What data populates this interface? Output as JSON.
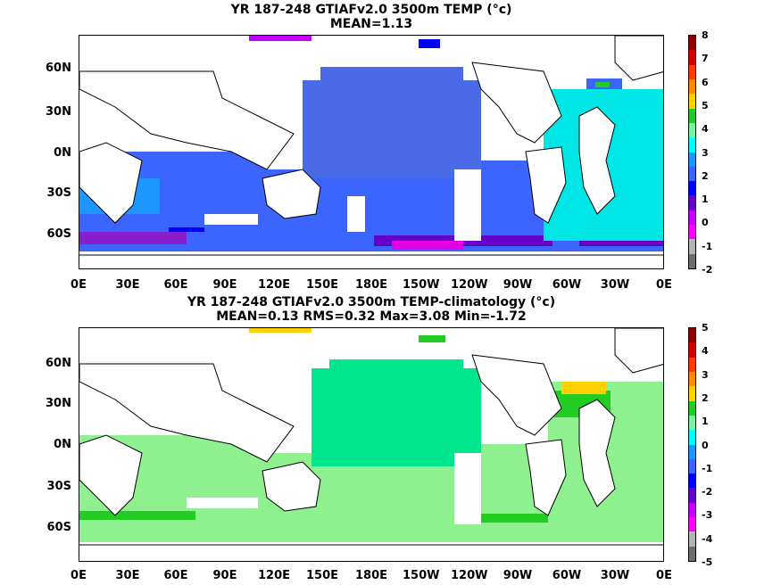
{
  "panels": [
    {
      "title_line1": "YR 187-248 GTIAFv2.0 3500m TEMP (°c)",
      "title_line2": "MEAN=1.13",
      "colorbar_labels": [
        "8",
        "7",
        "6",
        "5",
        "4",
        "3",
        "2",
        "1",
        "0",
        "-1",
        "-2"
      ],
      "colorbar_colors": [
        "#8b0000",
        "#d00000",
        "#ff3c00",
        "#ff8c00",
        "#ffd200",
        "#22cc22",
        "#7cf2a0",
        "#00ffff",
        "#1e96ff",
        "#3c64ff",
        "#0000ff",
        "#6400c8",
        "#c800ff",
        "#ff00ff",
        "#b4b4b4",
        "#6e6e6e"
      ]
    },
    {
      "title_line1": "YR 187-248 GTIAFv2.0 3500m TEMP-climatology (°c)",
      "title_line2": "MEAN=0.13   RMS=0.32   Max=3.08   Min=-1.72",
      "colorbar_labels": [
        "5",
        "4",
        "3",
        "2",
        "1",
        "0",
        "-1",
        "-2",
        "-3",
        "-4",
        "-5"
      ],
      "colorbar_colors": [
        "#8b0000",
        "#d00000",
        "#ff3c00",
        "#ff8c00",
        "#ffd200",
        "#22cc22",
        "#7cf2a0",
        "#00ffff",
        "#1e96ff",
        "#3c64ff",
        "#0000ff",
        "#6400c8",
        "#c800ff",
        "#ff00ff",
        "#b4b4b4",
        "#6e6e6e"
      ]
    }
  ],
  "lat_labels": [
    "60N",
    "30N",
    "0N",
    "30S",
    "60S"
  ],
  "lon_labels": [
    "0E",
    "30E",
    "60E",
    "90E",
    "120E",
    "150E",
    "180E",
    "150W",
    "120W",
    "90W",
    "60W",
    "30W",
    "0E"
  ]
}
